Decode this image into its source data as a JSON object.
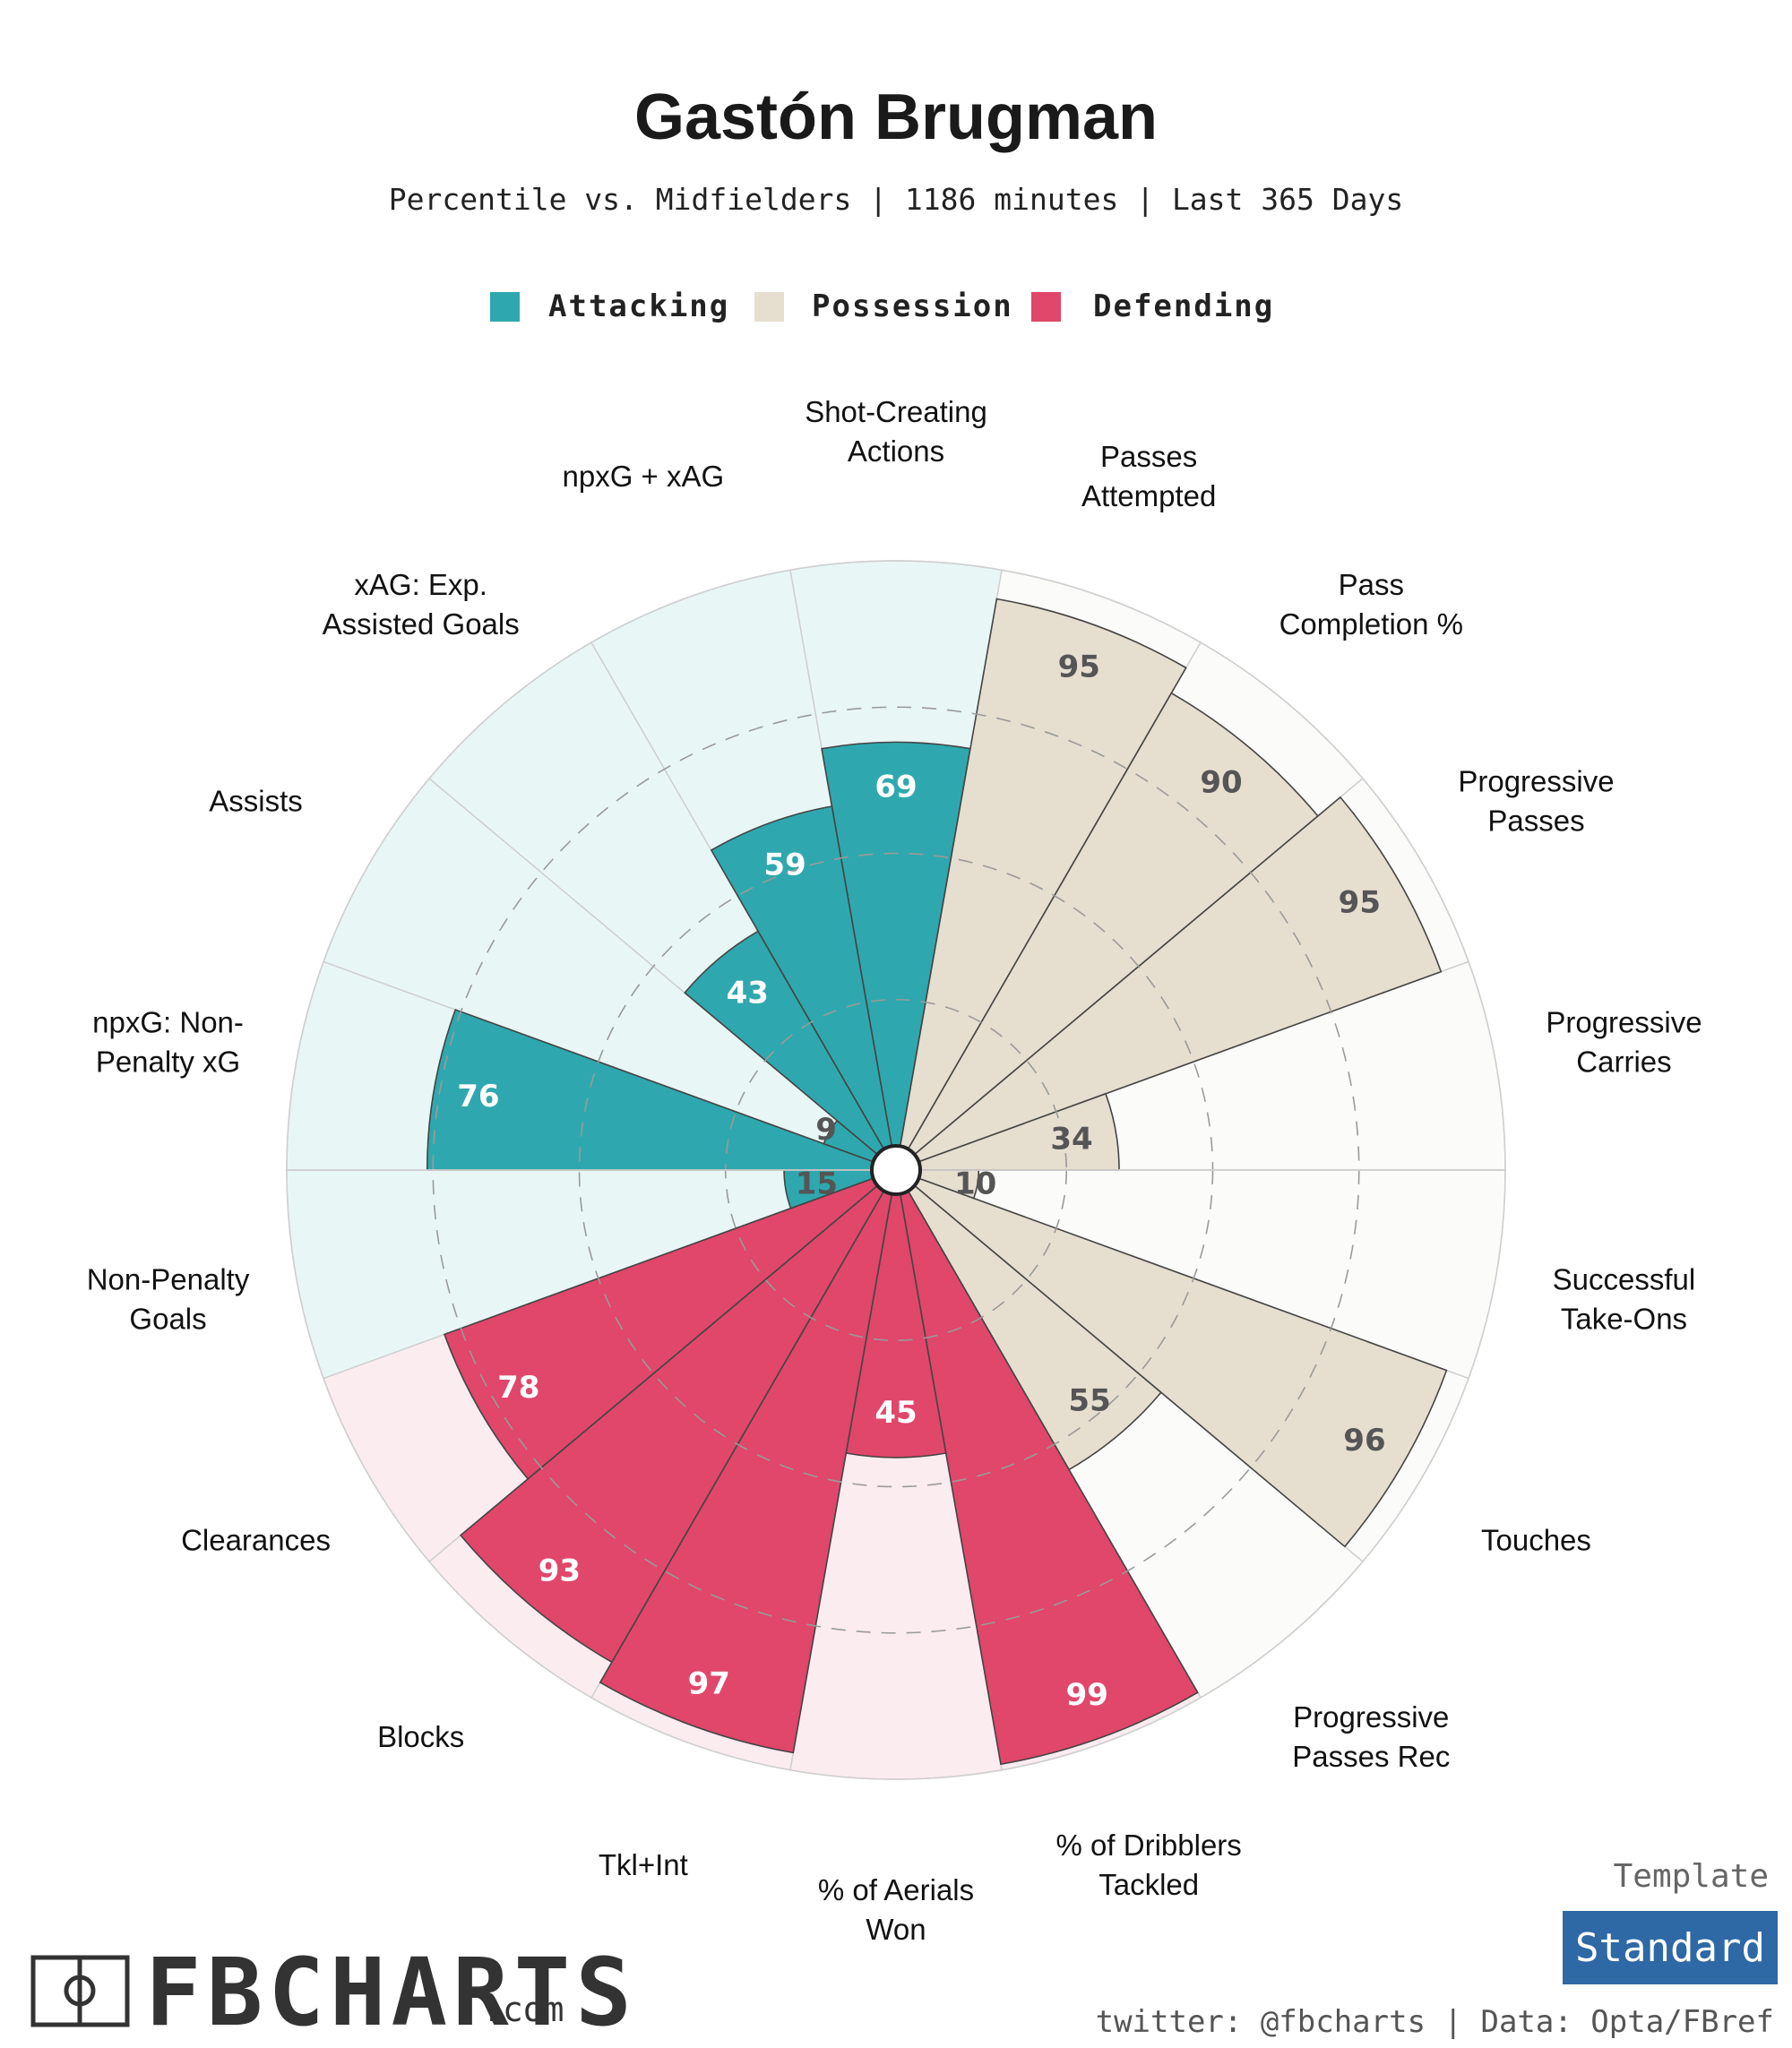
{
  "header": {
    "title": "Gastón Brugman",
    "subtitle": "Percentile vs. Midfielders | 1186 minutes | Last 365 Days"
  },
  "legend": [
    {
      "label": "Attacking",
      "color": "#2ea8ae"
    },
    {
      "label": "Possession",
      "color": "#e6dfd0"
    },
    {
      "label": "Defending",
      "color": "#e0476a"
    }
  ],
  "colors": {
    "attacking_bar": "#2ea8ae",
    "attacking_bg": "#e9f6f6",
    "possession_bar": "#e6dfd0",
    "possession_bg": "#fbfbf9",
    "defending_bar": "#e0476a",
    "defending_bg": "#fbecf0",
    "value_on_dark": "#ffffff",
    "value_on_light": "#555555"
  },
  "chart_data": {
    "type": "polar-bar",
    "title": "Gastón Brugman",
    "subtitle": "Percentile vs. Midfielders | 1186 minutes | Last 365 Days",
    "rlim": [
      0,
      100
    ],
    "gridlines": [
      25,
      50,
      75
    ],
    "categories": [
      {
        "label": "Shot-Creating\nActions",
        "value": 69,
        "group": "Attacking"
      },
      {
        "label": "Passes\nAttempted",
        "value": 95,
        "group": "Possession"
      },
      {
        "label": "Pass\nCompletion %",
        "value": 90,
        "group": "Possession"
      },
      {
        "label": "Progressive\nPasses",
        "value": 95,
        "group": "Possession"
      },
      {
        "label": "Progressive\nCarries",
        "value": 34,
        "group": "Possession"
      },
      {
        "label": "Successful\nTake-Ons",
        "value": 10,
        "group": "Possession"
      },
      {
        "label": "Touches",
        "value": 96,
        "group": "Possession"
      },
      {
        "label": "Progressive\nPasses Rec",
        "value": 55,
        "group": "Possession"
      },
      {
        "label": "% of Dribblers\nTackled",
        "value": 99,
        "group": "Defending"
      },
      {
        "label": "% of Aerials\nWon",
        "value": 45,
        "group": "Defending"
      },
      {
        "label": "Tkl+Int",
        "value": 97,
        "group": "Defending"
      },
      {
        "label": "Blocks",
        "value": 93,
        "group": "Defending"
      },
      {
        "label": "Clearances",
        "value": 78,
        "group": "Defending"
      },
      {
        "label": "Non-Penalty\nGoals",
        "value": 15,
        "group": "Attacking"
      },
      {
        "label": "npxG: Non-\nPenalty xG",
        "value": 76,
        "group": "Attacking"
      },
      {
        "label": "Assists",
        "value": 9,
        "group": "Attacking"
      },
      {
        "label": "xAG: Exp.\nAssisted Goals",
        "value": 43,
        "group": "Attacking"
      },
      {
        "label": "npxG + xAG",
        "value": 59,
        "group": "Attacking"
      }
    ]
  },
  "footer": {
    "logo_text": "FBCHARTS",
    "logo_suffix": ".com",
    "template_label": "Template",
    "template_value": "Standard",
    "credit": "twitter: @fbcharts | Data: Opta/FBref"
  }
}
